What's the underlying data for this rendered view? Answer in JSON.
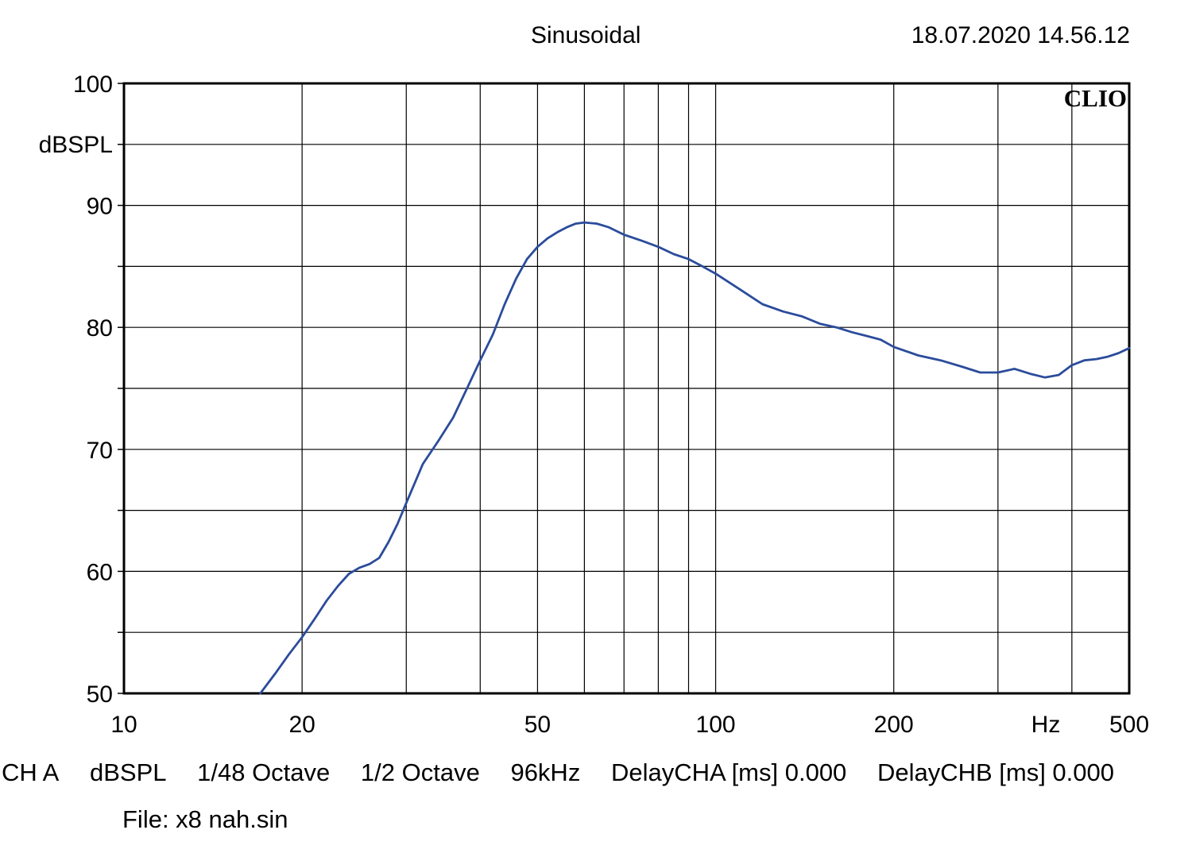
{
  "header": {
    "title": "Sinusoidal",
    "timestamp": "18.07.2020 14.56.12"
  },
  "logo": "CLIO",
  "footer": {
    "channel": "CH A",
    "unit": "dBSPL",
    "resolution": "1/48 Octave",
    "smoothing": "1/2 Octave",
    "sample_rate": "96kHz",
    "delay_a": "DelayCHA [ms] 0.000",
    "delay_b": "DelayCHB [ms] 0.000",
    "file": "File: x8 nah.sin"
  },
  "colors": {
    "curve": "#2b4c9b",
    "grid": "#000000"
  },
  "chart_data": {
    "type": "line",
    "xscale": "log",
    "xlim": [
      10,
      500
    ],
    "ylim": [
      50,
      100
    ],
    "ylabel": "dBSPL",
    "xunit_label": "Hz",
    "grid": true,
    "x_ticks": [
      10,
      20,
      50,
      100,
      200,
      500
    ],
    "x_tick_labels": [
      "10",
      "20",
      "50",
      "100",
      "200",
      "500"
    ],
    "y_ticks": [
      50,
      60,
      70,
      80,
      90,
      100
    ],
    "y_tick_labels": [
      "50",
      "60",
      "70",
      "80",
      "90",
      "100"
    ],
    "series": [
      {
        "x": [
          17.0,
          18.0,
          19.0,
          20.0,
          21.0,
          22.0,
          23.0,
          24.0,
          25.0,
          26.0,
          27.0,
          28.0,
          29.0,
          30.0,
          32.0,
          34.0,
          36.0,
          38.0,
          40.0,
          42.0,
          44.0,
          46.0,
          48.0,
          50.0,
          52.0,
          54.0,
          56.0,
          58.0,
          60.0,
          63.0,
          66.0,
          70.0,
          75.0,
          80.0,
          85.0,
          90.0,
          95.0,
          100.0,
          110.0,
          120.0,
          130.0,
          140.0,
          150.0,
          160.0,
          170.0,
          180.0,
          190.0,
          200.0,
          220.0,
          240.0,
          260.0,
          280.0,
          300.0,
          320.0,
          340.0,
          360.0,
          380.0,
          400.0,
          420.0,
          440.0,
          460.0,
          480.0,
          500.0
        ],
        "y": [
          50.0,
          51.6,
          53.2,
          54.6,
          56.1,
          57.6,
          58.8,
          59.8,
          60.3,
          60.6,
          61.1,
          62.4,
          63.9,
          65.6,
          68.8,
          70.7,
          72.6,
          75.0,
          77.3,
          79.4,
          81.9,
          84.0,
          85.6,
          86.6,
          87.3,
          87.8,
          88.2,
          88.5,
          88.6,
          88.5,
          88.2,
          87.6,
          87.1,
          86.6,
          86.0,
          85.6,
          85.0,
          84.4,
          83.1,
          81.9,
          81.3,
          80.9,
          80.3,
          80.0,
          79.6,
          79.3,
          79.0,
          78.4,
          77.7,
          77.3,
          76.8,
          76.3,
          76.3,
          76.6,
          76.2,
          75.9,
          76.1,
          76.9,
          77.3,
          77.4,
          77.6,
          77.9,
          78.3
        ]
      }
    ]
  }
}
